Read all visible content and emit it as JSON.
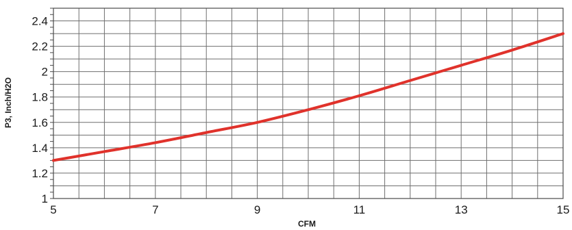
{
  "chart_data": {
    "type": "line",
    "title": "",
    "xlabel": "CFM",
    "ylabel": "P3, Inch/H2O",
    "xlim": [
      5,
      15
    ],
    "ylim": [
      1,
      2.5
    ],
    "x_ticks": [
      5,
      7,
      9,
      11,
      13,
      15
    ],
    "x_tick_labels": [
      "5",
      "7",
      "9",
      "11",
      "13",
      "15"
    ],
    "y_ticks": [
      1,
      1.2,
      1.4,
      1.6,
      1.8,
      2,
      2.2,
      2.4
    ],
    "y_tick_labels": [
      "1",
      "1.2",
      "1.4",
      "1.6",
      "1.8",
      "2",
      "2.2",
      "2.4"
    ],
    "grid": true,
    "series": [
      {
        "color": "#e0322b",
        "x": [
          5,
          6,
          7,
          8,
          9,
          10,
          11,
          12,
          13,
          14,
          15
        ],
        "y": [
          1.3,
          1.37,
          1.44,
          1.52,
          1.6,
          1.7,
          1.81,
          1.93,
          2.05,
          2.17,
          2.3
        ]
      }
    ]
  }
}
